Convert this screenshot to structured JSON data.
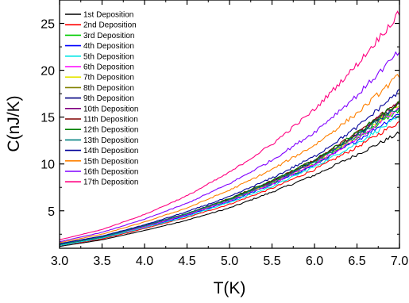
{
  "chart_data": {
    "type": "line",
    "xlabel": "T(K)",
    "ylabel": "C(nJ/K)",
    "xlim": [
      3.0,
      7.0
    ],
    "ylim": [
      1.0,
      27.5
    ],
    "x_ticks": [
      "3.0",
      "3.5",
      "4.0",
      "4.5",
      "5.0",
      "5.5",
      "6.0",
      "6.5",
      "7.0"
    ],
    "y_ticks": [
      "5",
      "10",
      "15",
      "20",
      "25"
    ],
    "grid": false,
    "legend_position": "top-left",
    "x": [
      3.0,
      3.5,
      4.0,
      4.5,
      5.0,
      5.5,
      6.0,
      6.5,
      7.0
    ],
    "series": [
      {
        "name": "1st Deposition",
        "color": "#000000",
        "values": [
          1.2,
          1.9,
          2.9,
          4.0,
          5.3,
          7.0,
          8.8,
          11.0,
          13.3
        ]
      },
      {
        "name": "2nd Deposition",
        "color": "#ff0000",
        "values": [
          1.3,
          2.0,
          3.1,
          4.3,
          5.7,
          7.4,
          9.4,
          11.8,
          14.5
        ]
      },
      {
        "name": "3rd Deposition",
        "color": "#00cc00",
        "values": [
          1.4,
          2.2,
          3.3,
          4.6,
          6.1,
          7.9,
          10.0,
          12.7,
          15.8
        ]
      },
      {
        "name": "4th Deposition",
        "color": "#0000ff",
        "values": [
          1.3,
          2.1,
          3.2,
          4.5,
          6.0,
          7.8,
          9.9,
          12.5,
          15.4
        ]
      },
      {
        "name": "5th Deposition",
        "color": "#00e5e5",
        "values": [
          1.3,
          2.1,
          3.2,
          4.4,
          5.9,
          7.6,
          9.7,
          12.2,
          15.0
        ]
      },
      {
        "name": "6th Deposition",
        "color": "#ff00ff",
        "values": [
          1.4,
          2.2,
          3.3,
          4.6,
          6.1,
          7.9,
          10.0,
          12.7,
          15.9
        ]
      },
      {
        "name": "7th Deposition",
        "color": "#e5e500",
        "values": [
          1.4,
          2.2,
          3.4,
          4.7,
          6.2,
          8.0,
          10.2,
          13.0,
          16.2
        ]
      },
      {
        "name": "8th Deposition",
        "color": "#808000",
        "values": [
          1.4,
          2.2,
          3.4,
          4.7,
          6.2,
          8.1,
          10.3,
          13.1,
          16.4
        ]
      },
      {
        "name": "9th Deposition",
        "color": "#000080",
        "values": [
          1.4,
          2.2,
          3.4,
          4.7,
          6.3,
          8.1,
          10.3,
          13.1,
          16.4
        ]
      },
      {
        "name": "10th Deposition",
        "color": "#800080",
        "values": [
          1.4,
          2.2,
          3.4,
          4.7,
          6.3,
          8.1,
          10.3,
          13.2,
          16.5
        ]
      },
      {
        "name": "11th Deposition",
        "color": "#800000",
        "values": [
          1.4,
          2.2,
          3.4,
          4.7,
          6.3,
          8.2,
          10.4,
          13.3,
          16.7
        ]
      },
      {
        "name": "12th Deposition",
        "color": "#008000",
        "values": [
          1.4,
          2.2,
          3.4,
          4.7,
          6.3,
          8.2,
          10.4,
          13.3,
          16.6
        ]
      },
      {
        "name": "13th Deposition",
        "color": "#008080",
        "values": [
          1.4,
          2.2,
          3.4,
          4.7,
          6.2,
          8.0,
          10.2,
          13.0,
          16.1
        ]
      },
      {
        "name": "14th Deposition",
        "color": "#000099",
        "values": [
          1.5,
          2.3,
          3.5,
          4.9,
          6.5,
          8.5,
          10.8,
          13.9,
          17.8
        ]
      },
      {
        "name": "15th Deposition",
        "color": "#ff8000",
        "values": [
          1.6,
          2.5,
          3.8,
          5.3,
          7.2,
          9.4,
          12.0,
          15.4,
          19.5
        ]
      },
      {
        "name": "16th Deposition",
        "color": "#8000ff",
        "values": [
          1.7,
          2.7,
          4.1,
          5.8,
          7.9,
          10.4,
          13.4,
          17.3,
          22.0
        ]
      },
      {
        "name": "17th Deposition",
        "color": "#ff0080",
        "values": [
          1.9,
          3.0,
          4.6,
          6.6,
          9.1,
          12.1,
          15.8,
          20.6,
          26.1
        ]
      }
    ]
  }
}
